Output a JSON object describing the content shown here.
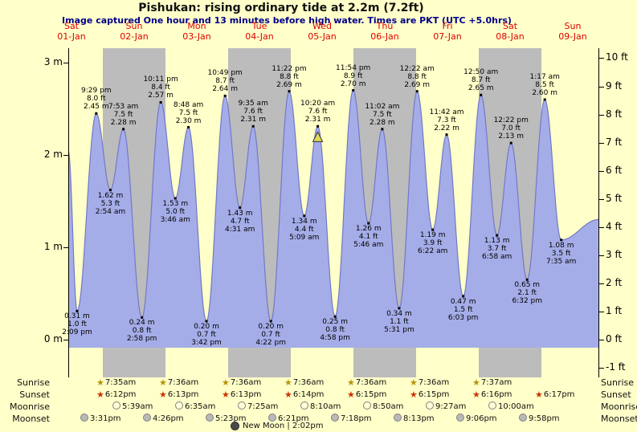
{
  "title": "Pishukan: rising  ordinary tide at 2.2m (7.2ft)",
  "subtitle": "Image captured One hour and 13 minutes before high water. Times are PKT (UTC +5.0hrs)",
  "days": [
    {
      "name": "Sat",
      "date": "01-Jan"
    },
    {
      "name": "Sun",
      "date": "02-Jan"
    },
    {
      "name": "Mon",
      "date": "03-Jan"
    },
    {
      "name": "Tue",
      "date": "04-Jan"
    },
    {
      "name": "Wed",
      "date": "05-Jan"
    },
    {
      "name": "Thu",
      "date": "06-Jan"
    },
    {
      "name": "Fri",
      "date": "07-Jan"
    },
    {
      "name": "Sat",
      "date": "08-Jan"
    },
    {
      "name": "Sun",
      "date": "09-Jan"
    }
  ],
  "axis_left": [
    {
      "label": "3 m",
      "m": 3
    },
    {
      "label": "2 m",
      "m": 2
    },
    {
      "label": "1 m",
      "m": 1
    },
    {
      "label": "0 m",
      "m": 0
    }
  ],
  "axis_right": [
    {
      "label": "10 ft",
      "ft": 10
    },
    {
      "label": "9 ft",
      "ft": 9
    },
    {
      "label": "8 ft",
      "ft": 8
    },
    {
      "label": "7 ft",
      "ft": 7
    },
    {
      "label": "6 ft",
      "ft": 6
    },
    {
      "label": "5 ft",
      "ft": 5
    },
    {
      "label": "4 ft",
      "ft": 4
    },
    {
      "label": "3 ft",
      "ft": 3
    },
    {
      "label": "2 ft",
      "ft": 2
    },
    {
      "label": "1 ft",
      "ft": 1
    },
    {
      "label": "0 ft",
      "ft": 0
    },
    {
      "label": "-1 ft",
      "ft": -1
    }
  ],
  "colors": {
    "background": "#ffffc9",
    "day_band": "#bcbcbc",
    "curve_fill": "#a5ade8",
    "curve_edge": "#7278c8",
    "day_label": "#e00000",
    "subtitle": "#00008b",
    "current_marker": "#e0d95c",
    "sunrise_star": "#b8940a",
    "sunset_star": "#cc3300",
    "moonrise_fill": "#ffffd8",
    "moonset_fill": "#b9b9b9"
  },
  "icons": {
    "sunrise_glyph": "★",
    "sunset_glyph": "★",
    "moonrise": "pale-circle",
    "moonset": "gray-circle",
    "new_moon": "dark-circle"
  },
  "chart_data": {
    "type": "area",
    "title": "Pishukan: rising  ordinary tide at 2.2m (7.2ft)",
    "y_left_unit": "m",
    "y_right_unit": "ft",
    "ylim_m": [
      -0.35,
      3.16
    ],
    "gray_day_indices": [
      1,
      3,
      5,
      7
    ],
    "curve_boundary": {
      "start": {
        "t": 10.77,
        "h": 2.05
      },
      "end": {
        "t": 213.8,
        "h": 1.3
      }
    },
    "events": [
      {
        "kind": "low",
        "m": "0.31 m",
        "ft": "1.0 ft",
        "time": "2:09 pm",
        "h": 0.31,
        "t": 14.15
      },
      {
        "kind": "high",
        "time": "9:29 pm",
        "ft": "8.0 ft",
        "m": "2.45 m",
        "h": 2.45,
        "t": 21.483
      },
      {
        "kind": "low",
        "m": "1.62 m",
        "ft": "5.3 ft",
        "time": "2:54 am",
        "h": 1.62,
        "t": 26.9
      },
      {
        "kind": "high",
        "time": "7:53 am",
        "ft": "7.5 ft",
        "m": "2.28 m",
        "h": 2.28,
        "t": 31.883
      },
      {
        "kind": "low",
        "m": "0.24 m",
        "ft": "0.8 ft",
        "time": "2:58 pm",
        "h": 0.24,
        "t": 38.967
      },
      {
        "kind": "high",
        "time": "10:11 pm",
        "ft": "8.4 ft",
        "m": "2.57 m",
        "h": 2.57,
        "t": 46.183
      },
      {
        "kind": "low",
        "m": "1.53 m",
        "ft": "5.0 ft",
        "time": "3:46 am",
        "h": 1.53,
        "t": 51.767
      },
      {
        "kind": "high",
        "time": "8:48 am",
        "ft": "7.5 ft",
        "m": "2.30 m",
        "h": 2.3,
        "t": 56.8
      },
      {
        "kind": "low",
        "m": "0.20 m",
        "ft": "0.7 ft",
        "time": "3:42 pm",
        "h": 0.2,
        "t": 63.7
      },
      {
        "kind": "high",
        "time": "10:49 pm",
        "ft": "8.7 ft",
        "m": "2.64 m",
        "h": 2.64,
        "t": 70.817
      },
      {
        "kind": "low",
        "m": "1.43 m",
        "ft": "4.7 ft",
        "time": "4:31 am",
        "h": 1.43,
        "t": 76.517
      },
      {
        "kind": "high",
        "time": "9:35 am",
        "ft": "7.6 ft",
        "m": "2.31 m",
        "h": 2.31,
        "t": 81.583
      },
      {
        "kind": "low",
        "m": "0.20 m",
        "ft": "0.7 ft",
        "time": "4:22 pm",
        "h": 0.2,
        "t": 88.367
      },
      {
        "kind": "high",
        "time": "11:22 pm",
        "ft": "8.8 ft",
        "m": "2.69 m",
        "h": 2.69,
        "t": 95.367
      },
      {
        "kind": "low",
        "m": "1.34 m",
        "ft": "4.4 ft",
        "time": "5:09 am",
        "h": 1.34,
        "t": 101.15
      },
      {
        "kind": "high",
        "time": "10:20 am",
        "ft": "7.6 ft",
        "m": "2.31 m",
        "h": 2.31,
        "t": 106.333,
        "marker": "current"
      },
      {
        "kind": "low",
        "m": "0.25 m",
        "ft": "0.8 ft",
        "time": "4:58 pm",
        "h": 0.25,
        "t": 112.967
      },
      {
        "kind": "high",
        "time": "11:54 pm",
        "ft": "8.9 ft",
        "m": "2.70 m",
        "h": 2.7,
        "t": 119.9
      },
      {
        "kind": "low",
        "m": "1.26 m",
        "ft": "4.1 ft",
        "time": "5:46 am",
        "h": 1.26,
        "t": 125.767
      },
      {
        "kind": "high",
        "time": "11:02 am",
        "ft": "7.5 ft",
        "m": "2.28 m",
        "h": 2.28,
        "t": 131.033
      },
      {
        "kind": "low",
        "m": "0.34 m",
        "ft": "1.1 ft",
        "time": "5:31 pm",
        "h": 0.34,
        "t": 137.517
      },
      {
        "kind": "high",
        "time": "12:22 am",
        "ft": "8.8 ft",
        "m": "2.69 m",
        "h": 2.69,
        "t": 144.367
      },
      {
        "kind": "low",
        "m": "1.19 m",
        "ft": "3.9 ft",
        "time": "6:22 am",
        "h": 1.19,
        "t": 150.367
      },
      {
        "kind": "high",
        "time": "11:42 am",
        "ft": "7.3 ft",
        "m": "2.22 m",
        "h": 2.22,
        "t": 155.7
      },
      {
        "kind": "low",
        "m": "0.47 m",
        "ft": "1.5 ft",
        "time": "6:03 pm",
        "h": 0.47,
        "t": 162.05
      },
      {
        "kind": "high",
        "time": "12:50 am",
        "ft": "8.7 ft",
        "m": "2.65 m",
        "h": 2.65,
        "t": 168.833
      },
      {
        "kind": "low",
        "m": "1.13 m",
        "ft": "3.7 ft",
        "time": "6:58 am",
        "h": 1.13,
        "t": 174.967
      },
      {
        "kind": "high",
        "time": "12:22 pm",
        "ft": "7.0 ft",
        "m": "2.13 m",
        "h": 2.13,
        "t": 180.367
      },
      {
        "kind": "low",
        "m": "0.65 m",
        "ft": "2.1 ft",
        "time": "6:32 pm",
        "h": 0.65,
        "t": 186.533
      },
      {
        "kind": "high",
        "time": "1:17 am",
        "ft": "8.5 ft",
        "m": "2.60 m",
        "h": 2.6,
        "t": 193.283
      },
      {
        "kind": "low",
        "m": "1.08 m",
        "ft": "3.5 ft",
        "time": "7:35 am",
        "h": 1.08,
        "t": 199.583
      }
    ]
  },
  "almanac": {
    "rows": [
      {
        "key": "sunrise",
        "label": "Sunrise",
        "times": [
          "7:35am",
          "7:36am",
          "7:36am",
          "7:36am",
          "7:36am",
          "7:36am",
          "7:37am"
        ]
      },
      {
        "key": "sunset",
        "label": "Sunset",
        "times": [
          "6:12pm",
          "6:13pm",
          "6:13pm",
          "6:14pm",
          "6:15pm",
          "6:15pm",
          "6:16pm",
          "6:17pm"
        ]
      },
      {
        "key": "moonrise",
        "label": "Moonrise",
        "times": [
          "5:39am",
          "6:35am",
          "7:25am",
          "8:10am",
          "8:50am",
          "9:27am",
          "10:00am"
        ]
      },
      {
        "key": "moonset",
        "label": "Moonset",
        "times": [
          "3:31pm",
          "4:26pm",
          "5:23pm",
          "6:21pm",
          "7:18pm",
          "8:13pm",
          "9:06pm",
          "9:58pm"
        ]
      }
    ],
    "new_moon": "New Moon | 2:02pm"
  }
}
